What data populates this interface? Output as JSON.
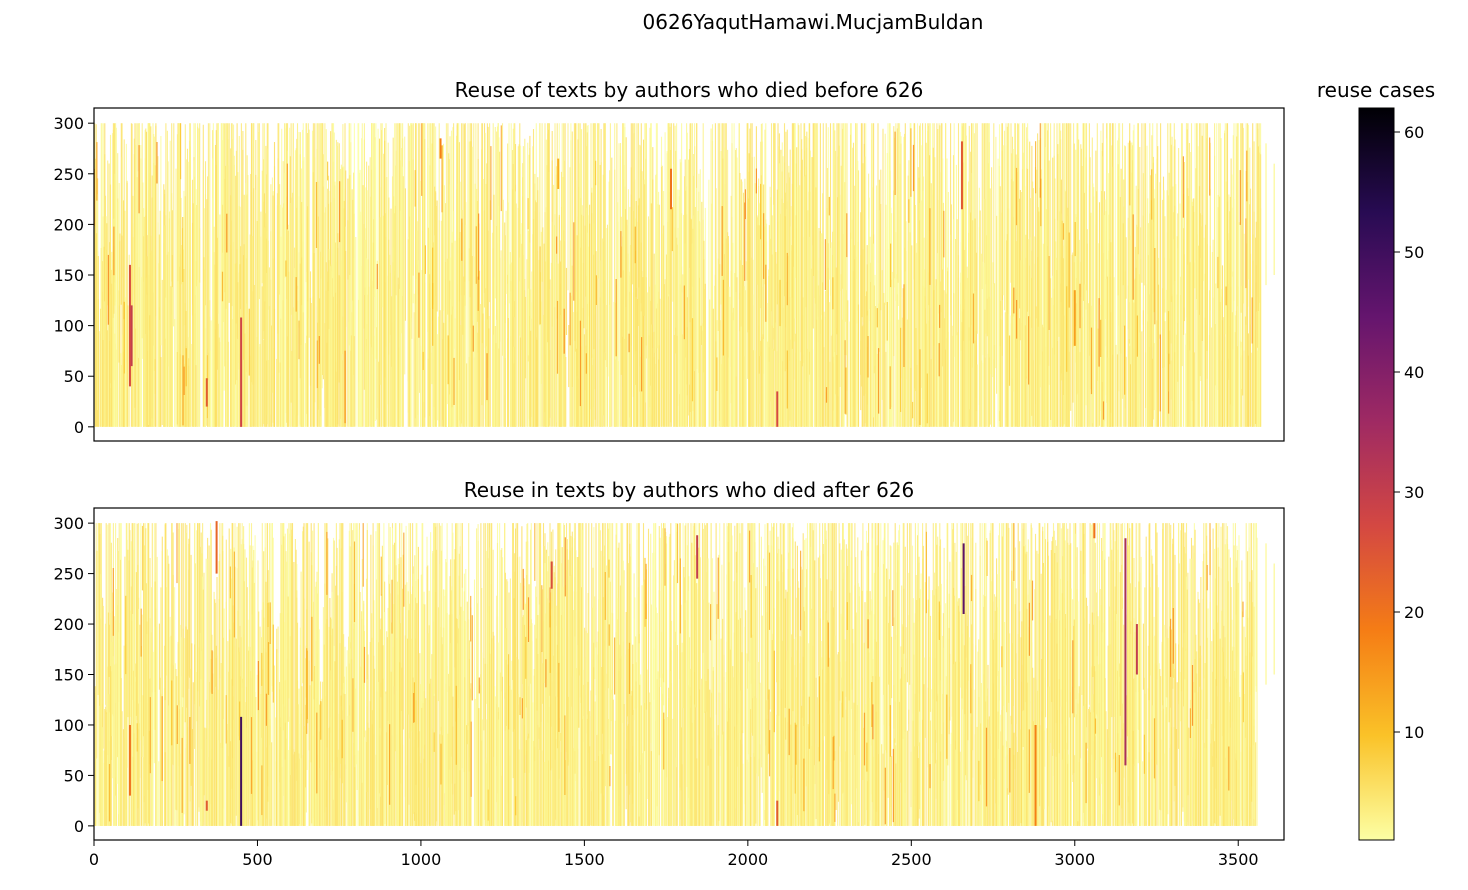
{
  "figure": {
    "suptitle": "0626YaqutHamawi.MucjamBuldan"
  },
  "colors": {
    "frame": "#000000",
    "colormap": "inferno_r",
    "colormap_stops": [
      "#fcffa4",
      "#fac228",
      "#f57d15",
      "#d44842",
      "#9f2a63",
      "#65156e",
      "#280b53",
      "#000004"
    ]
  },
  "chart_data": [
    {
      "type": "heatmap",
      "title": "Reuse of texts by authors who died before 626",
      "xlim": [
        0,
        3640
      ],
      "ylim": [
        -14,
        315
      ],
      "x_ticks_visible": false,
      "yticks": [
        0,
        50,
        100,
        150,
        200,
        250,
        300
      ],
      "ytick_labels": [
        "0",
        "50",
        "100",
        "150",
        "200",
        "250",
        "300"
      ],
      "grid": false,
      "baseline_value_range": [
        1,
        6
      ],
      "x_extent": [
        0,
        3570
      ],
      "y_extent": [
        0,
        300
      ],
      "highlights": [
        {
          "x": 110,
          "y0": 40,
          "y1": 160,
          "value": 26
        },
        {
          "x": 115,
          "y0": 60,
          "y1": 120,
          "value": 30
        },
        {
          "x": 345,
          "y0": 20,
          "y1": 48,
          "value": 24
        },
        {
          "x": 450,
          "y0": 0,
          "y1": 108,
          "value": 28
        },
        {
          "x": 1060,
          "y0": 265,
          "y1": 285,
          "value": 18
        },
        {
          "x": 1765,
          "y0": 215,
          "y1": 255,
          "value": 20
        },
        {
          "x": 2090,
          "y0": 0,
          "y1": 35,
          "value": 27
        },
        {
          "x": 2655,
          "y0": 215,
          "y1": 282,
          "value": 24
        },
        {
          "x": 3000,
          "y0": 80,
          "y1": 135,
          "value": 14
        },
        {
          "x": 1420,
          "y0": 235,
          "y1": 265,
          "value": 12
        }
      ]
    },
    {
      "type": "heatmap",
      "title": "Reuse in texts by authors who died after 626",
      "xlim": [
        0,
        3640
      ],
      "ylim": [
        -14,
        315
      ],
      "xticks": [
        0,
        500,
        1000,
        1500,
        2000,
        2500,
        3000,
        3500
      ],
      "xtick_labels": [
        "0",
        "500",
        "1000",
        "1500",
        "2000",
        "2500",
        "3000",
        "3500"
      ],
      "yticks": [
        0,
        50,
        100,
        150,
        200,
        250,
        300
      ],
      "ytick_labels": [
        "0",
        "50",
        "100",
        "150",
        "200",
        "250",
        "300"
      ],
      "grid": false,
      "baseline_value_range": [
        1,
        6
      ],
      "x_extent": [
        0,
        3560
      ],
      "y_extent": [
        0,
        300
      ],
      "highlights": [
        {
          "x": 110,
          "y0": 30,
          "y1": 100,
          "value": 20
        },
        {
          "x": 375,
          "y0": 250,
          "y1": 302,
          "value": 22
        },
        {
          "x": 345,
          "y0": 15,
          "y1": 25,
          "value": 24
        },
        {
          "x": 450,
          "y0": 0,
          "y1": 108,
          "value": 50
        },
        {
          "x": 1400,
          "y0": 235,
          "y1": 262,
          "value": 26
        },
        {
          "x": 1845,
          "y0": 245,
          "y1": 288,
          "value": 30
        },
        {
          "x": 2090,
          "y0": 0,
          "y1": 25,
          "value": 24
        },
        {
          "x": 2660,
          "y0": 210,
          "y1": 280,
          "value": 46
        },
        {
          "x": 3155,
          "y0": 60,
          "y1": 285,
          "value": 34
        },
        {
          "x": 3190,
          "y0": 150,
          "y1": 200,
          "value": 30
        },
        {
          "x": 2880,
          "y0": 0,
          "y1": 100,
          "value": 18
        },
        {
          "x": 3060,
          "y0": 285,
          "y1": 300,
          "value": 20
        }
      ]
    }
  ],
  "colorbar": {
    "label": "reuse cases",
    "range": [
      1,
      62
    ],
    "ticks": [
      10,
      20,
      30,
      40,
      50,
      60
    ],
    "tick_labels": [
      "10",
      "20",
      "30",
      "40",
      "50",
      "60"
    ]
  }
}
